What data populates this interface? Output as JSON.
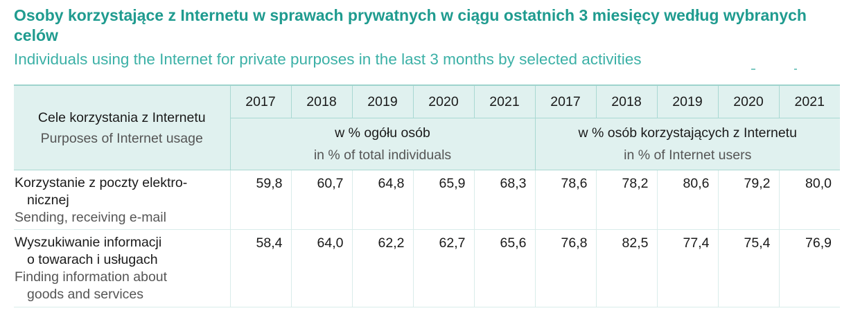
{
  "title_pl": "Osoby korzystające z Internetu w sprawach prywatnych w ciągu ostatnich 3 miesięcy według wybranych celów",
  "title_en": "Individuals using the Internet for private purposes in the last 3 months by selected activities",
  "header": {
    "purposes_pl": "Cele korzystania z Internetu",
    "purposes_en": "Purposes of Internet usage",
    "years": [
      "2017",
      "2018",
      "2019",
      "2020",
      "2021",
      "2017",
      "2018",
      "2019",
      "2020",
      "2021"
    ],
    "unit_total_pl": "w % ogółu osób",
    "unit_total_en": "in % of total individuals",
    "unit_users_pl": "w % osób korzystających z Internetu",
    "unit_users_en": "in % of Internet users"
  },
  "rows": [
    {
      "label_pl_1": "Korzystanie z poczty elektro-",
      "label_pl_2": "nicznej",
      "label_en_1": "Sending, receiving e-mail",
      "label_en_2": "",
      "values": [
        "59,8",
        "60,7",
        "64,8",
        "65,9",
        "68,3",
        "78,6",
        "78,2",
        "80,6",
        "79,2",
        "80,0"
      ]
    },
    {
      "label_pl_1": "Wyszukiwanie informacji",
      "label_pl_2": "o towarach i usługach",
      "label_en_1": "Finding information about",
      "label_en_2": "goods and services",
      "values": [
        "58,4",
        "64,0",
        "62,2",
        "62,7",
        "65,6",
        "76,8",
        "82,5",
        "77,4",
        "75,4",
        "76,9"
      ]
    }
  ]
}
